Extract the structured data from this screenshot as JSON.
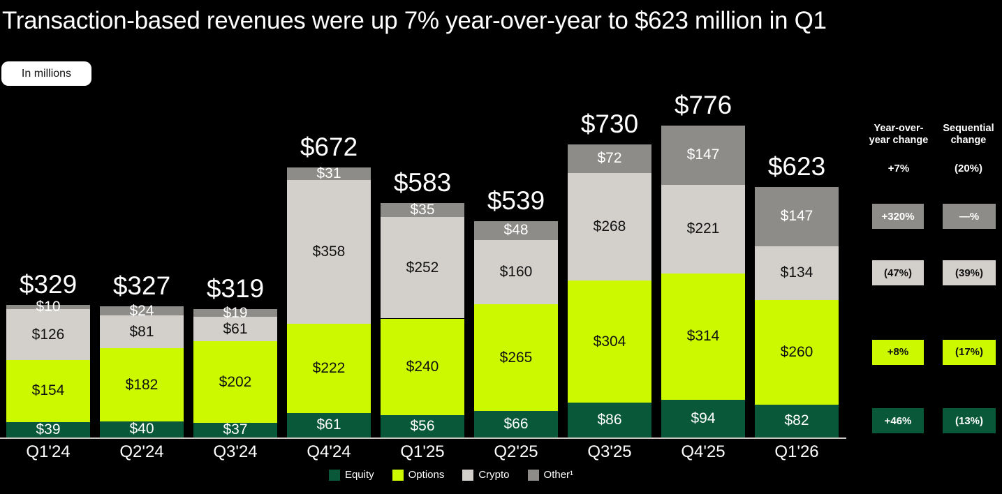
{
  "page": {
    "title": "Transaction-based revenues were up 7% year-over-year to $623 million in Q1",
    "units_badge": "In millions"
  },
  "colors": {
    "background": "#000000",
    "equity": "#0A583A",
    "options": "#CCF900",
    "crypto": "#D3D0CB",
    "other": "#8E8C89",
    "axis_line": "#CBC8C3",
    "white_text": "#FFFFFF",
    "dark_text": "#111111"
  },
  "chart_data": {
    "type": "bar",
    "stacked": true,
    "value_prefix": "$",
    "categories": [
      "Q1'24",
      "Q2'24",
      "Q3'24",
      "Q4'24",
      "Q1'25",
      "Q2'25",
      "Q3'25",
      "Q4'25",
      "Q1'26"
    ],
    "series": [
      {
        "name": "Equity",
        "color_key": "equity",
        "label_color": "#FFFFFF",
        "values": [
          39,
          40,
          37,
          61,
          56,
          66,
          86,
          94,
          82
        ]
      },
      {
        "name": "Options",
        "color_key": "options",
        "label_color": "#111111",
        "values": [
          154,
          182,
          202,
          222,
          240,
          265,
          304,
          314,
          260
        ]
      },
      {
        "name": "Crypto",
        "color_key": "crypto",
        "label_color": "#111111",
        "values": [
          126,
          81,
          61,
          358,
          252,
          160,
          268,
          221,
          134
        ]
      },
      {
        "name": "Other",
        "color_key": "other",
        "label_color": "#FFFFFF",
        "values": [
          10,
          24,
          19,
          31,
          35,
          48,
          72,
          147,
          147
        ]
      }
    ],
    "totals": [
      329,
      327,
      319,
      672,
      583,
      539,
      730,
      776,
      623
    ],
    "legend_position": "bottom",
    "grid": false
  },
  "change_panel": {
    "columns": [
      {
        "id": "yoy",
        "header_lines": [
          "Year-over-",
          "year change"
        ],
        "total": "+7%",
        "boxes": [
          {
            "series": "Other",
            "value": "+320%"
          },
          {
            "series": "Crypto",
            "value": "(47%)"
          },
          {
            "series": "Options",
            "value": "+8%"
          },
          {
            "series": "Equity",
            "value": "+46%"
          }
        ]
      },
      {
        "id": "sequential",
        "header_lines": [
          "Sequential",
          "change"
        ],
        "total": "(20%)",
        "boxes": [
          {
            "series": "Other",
            "value": "—%"
          },
          {
            "series": "Crypto",
            "value": "(39%)"
          },
          {
            "series": "Options",
            "value": "(17%)"
          },
          {
            "series": "Equity",
            "value": "(13%)"
          }
        ]
      }
    ]
  },
  "legend": {
    "items": [
      {
        "label": "Equity",
        "color_key": "equity"
      },
      {
        "label": "Options",
        "color_key": "options"
      },
      {
        "label": "Crypto",
        "color_key": "crypto"
      },
      {
        "label": "Other¹",
        "color_key": "other"
      }
    ]
  }
}
